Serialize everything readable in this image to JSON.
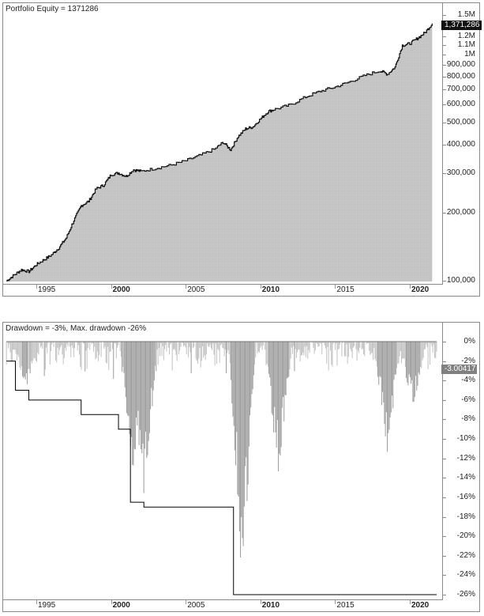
{
  "chart_data": [
    {
      "type": "area",
      "title": "Portfolio Equity = 1371286",
      "xlabel": "",
      "ylabel": "",
      "scale": "log",
      "x_ticks": [
        "1995",
        "2000",
        "2005",
        "2010",
        "2015",
        "2020"
      ],
      "x_ticks_bold": [
        "2000",
        "2010",
        "2020"
      ],
      "y_ticks": [
        "1.5M",
        "1.3M",
        "1.2M",
        "1.1M",
        "1M",
        "900,000",
        "800,000",
        "700,000",
        "600,000",
        "500,000",
        "400,000",
        "300,000",
        "200,000",
        "100,000"
      ],
      "ylim": [
        95000,
        1550000
      ],
      "last_value_label": "1,371,286",
      "x": [
        1993.0,
        1993.5,
        1994.0,
        1994.5,
        1995.0,
        1995.5,
        1996.0,
        1996.5,
        1997.0,
        1997.5,
        1998.0,
        1998.5,
        1999.0,
        1999.5,
        2000.0,
        2000.5,
        2001.0,
        2001.5,
        2002.0,
        2003.0,
        2004.0,
        2005.0,
        2006.0,
        2007.0,
        2007.5,
        2008.0,
        2008.5,
        2009.0,
        2009.5,
        2010.0,
        2010.5,
        2011.0,
        2012.0,
        2013.0,
        2014.0,
        2015.0,
        2016.0,
        2017.0,
        2018.0,
        2018.5,
        2019.0,
        2019.5,
        2020.0,
        2020.5,
        2021.0,
        2021.5
      ],
      "values": [
        100000,
        106000,
        112000,
        110000,
        118000,
        124000,
        130000,
        140000,
        155000,
        185000,
        215000,
        225000,
        255000,
        265000,
        295000,
        300000,
        290000,
        310000,
        305000,
        315000,
        325000,
        340000,
        360000,
        385000,
        410000,
        380000,
        435000,
        470000,
        480000,
        520000,
        560000,
        575000,
        600000,
        650000,
        690000,
        720000,
        760000,
        810000,
        850000,
        820000,
        880000,
        1100000,
        1120000,
        1180000,
        1250000,
        1371286
      ]
    },
    {
      "type": "area",
      "title": "Drawdown = -3%, Max. drawdown -26%",
      "xlabel": "",
      "ylabel": "",
      "x_ticks": [
        "1995",
        "2000",
        "2005",
        "2010",
        "2015",
        "2020"
      ],
      "x_ticks_bold": [
        "2000",
        "2010",
        "2020"
      ],
      "y_ticks": [
        "0%",
        "-2%",
        "-4%",
        "-6%",
        "-8%",
        "-10%",
        "-12%",
        "-14%",
        "-16%",
        "-18%",
        "-20%",
        "-22%",
        "-24%",
        "-26%"
      ],
      "ylim": [
        -26.5,
        0.5
      ],
      "last_value_label": "-3.00417",
      "max_drawdown_steps": [
        {
          "from": 1993.0,
          "to": 1993.6,
          "value": -2
        },
        {
          "from": 1993.6,
          "to": 1994.5,
          "value": -5
        },
        {
          "from": 1994.5,
          "to": 1998.0,
          "value": -6
        },
        {
          "from": 1998.0,
          "to": 2000.5,
          "value": -7.5
        },
        {
          "from": 2000.5,
          "to": 2001.3,
          "value": -9
        },
        {
          "from": 2001.3,
          "to": 2002.2,
          "value": -16.5
        },
        {
          "from": 2002.2,
          "to": 2008.2,
          "value": -17
        },
        {
          "from": 2008.2,
          "to": 2021.8,
          "value": -26
        }
      ],
      "notable_drawdowns": [
        {
          "x": 1994.3,
          "value": -5
        },
        {
          "x": 2001.5,
          "value": -16
        },
        {
          "x": 2002.2,
          "value": -16.5
        },
        {
          "x": 2008.8,
          "value": -26
        },
        {
          "x": 2011.2,
          "value": -14
        },
        {
          "x": 2018.5,
          "value": -11.5
        },
        {
          "x": 2020.2,
          "value": -7
        }
      ]
    }
  ],
  "equity_panel": {
    "title": "Portfolio Equity = 1371286",
    "value_tag": "1,371,286"
  },
  "drawdown_panel": {
    "title": "Drawdown = -3%, Max. drawdown -26%",
    "value_tag": "-3.00417"
  },
  "colors": {
    "equity_fill": "#c4c4c4",
    "equity_line": "#111111",
    "drawdown_fill": "#e2e2e2",
    "drawdown_line": "#8c8c8c",
    "max_dd_line": "#000000",
    "equity_tag_bg": "#111111",
    "drawdown_tag_bg": "#808080"
  }
}
